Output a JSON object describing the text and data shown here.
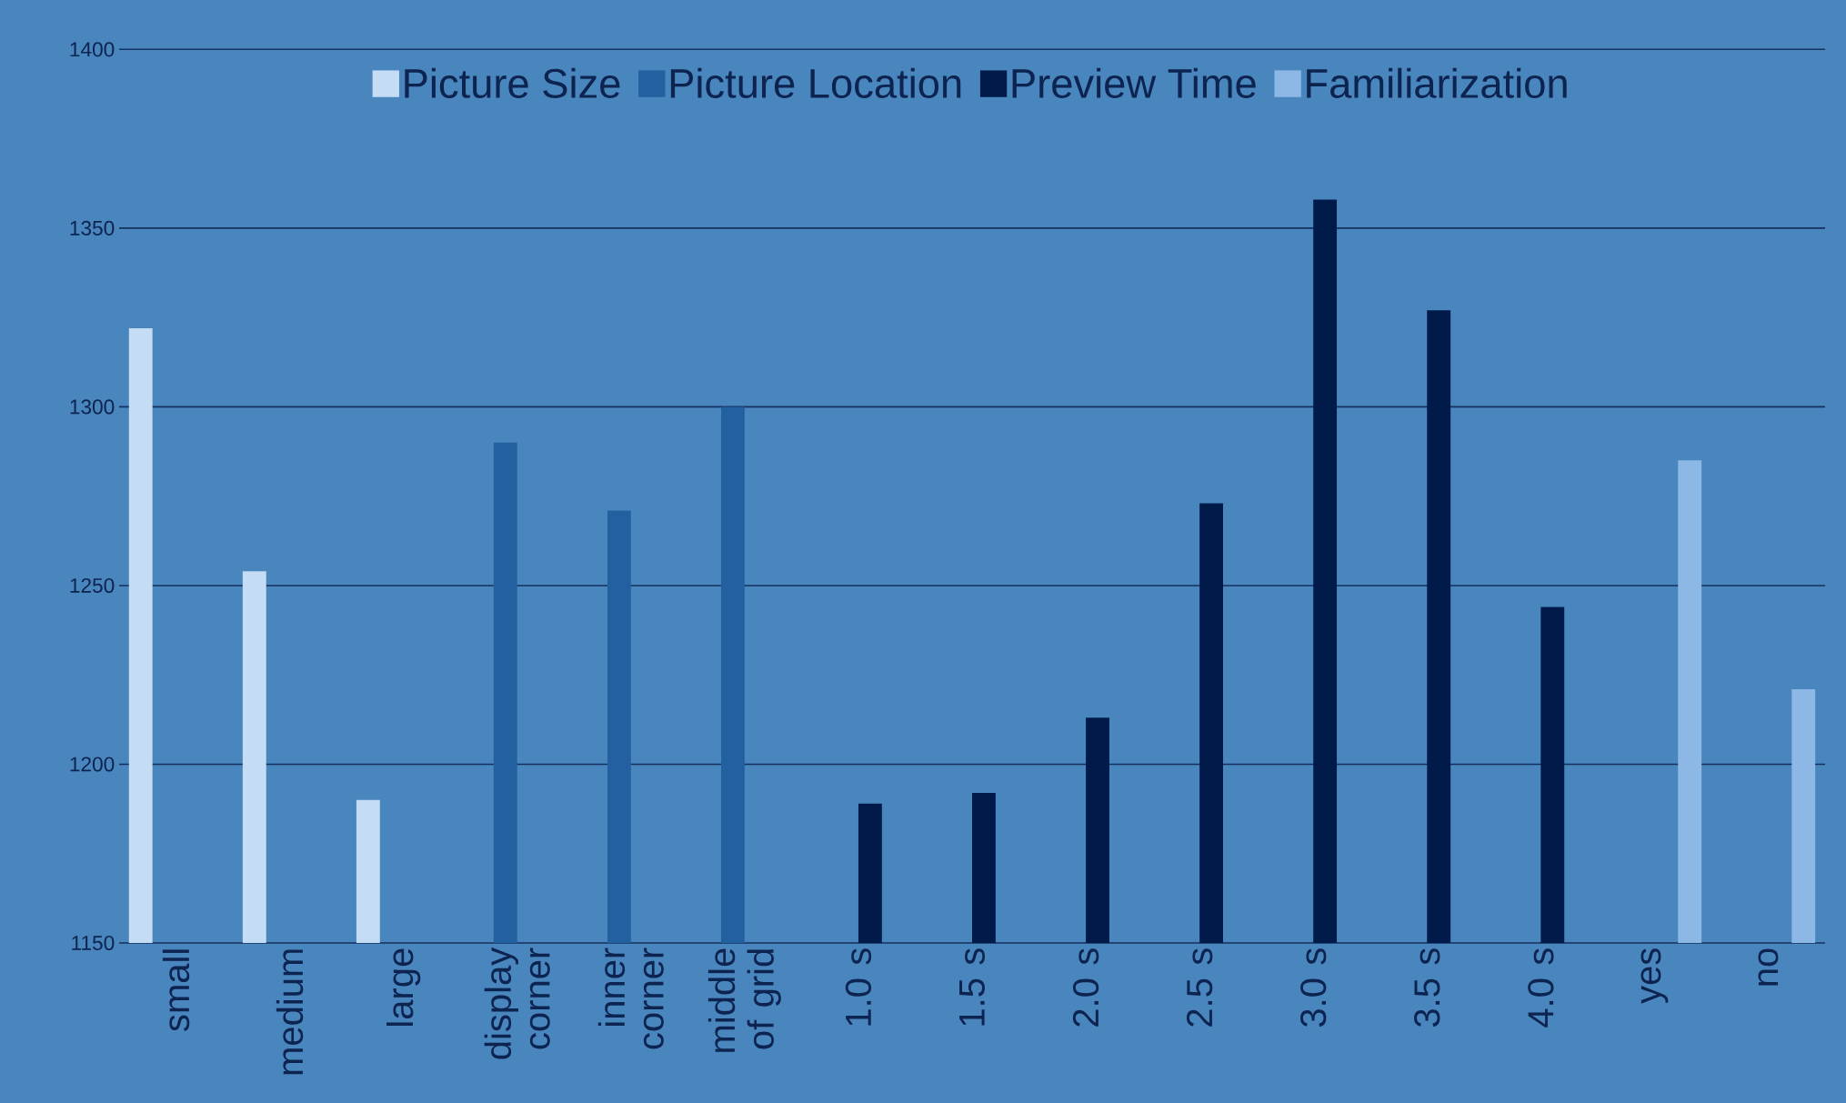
{
  "chart_data": {
    "type": "bar",
    "categories": [
      "small",
      "medium",
      "large",
      "display corner",
      "inner corner",
      "middle of grid",
      "1.0 s",
      "1.5 s",
      "2.0 s",
      "2.5 s",
      "3.0 s",
      "3.5 s",
      "4.0 s",
      "yes",
      "no"
    ],
    "series": [
      {
        "name": "Picture Size",
        "color": "#c5dcf5",
        "values": [
          1322,
          1254,
          1190,
          null,
          null,
          null,
          null,
          null,
          null,
          null,
          null,
          null,
          null,
          null,
          null
        ]
      },
      {
        "name": "Picture Location",
        "color": "#2360a0",
        "values": [
          null,
          null,
          null,
          1290,
          1271,
          1300,
          null,
          null,
          null,
          null,
          null,
          null,
          null,
          null,
          null
        ]
      },
      {
        "name": "Preview Time",
        "color": "#001a4a",
        "values": [
          null,
          null,
          null,
          null,
          null,
          null,
          1189,
          1192,
          1213,
          1273,
          1358,
          1327,
          1244,
          null,
          null
        ]
      },
      {
        "name": "Familiarization",
        "color": "#8db8e5",
        "values": [
          null,
          null,
          null,
          null,
          null,
          null,
          null,
          null,
          null,
          null,
          null,
          null,
          null,
          1285,
          1221
        ]
      }
    ],
    "ylim": [
      1150,
      1400
    ],
    "yticks": [
      1150,
      1200,
      1250,
      1300,
      1350,
      1400
    ],
    "grid": "y",
    "legend": "top"
  }
}
